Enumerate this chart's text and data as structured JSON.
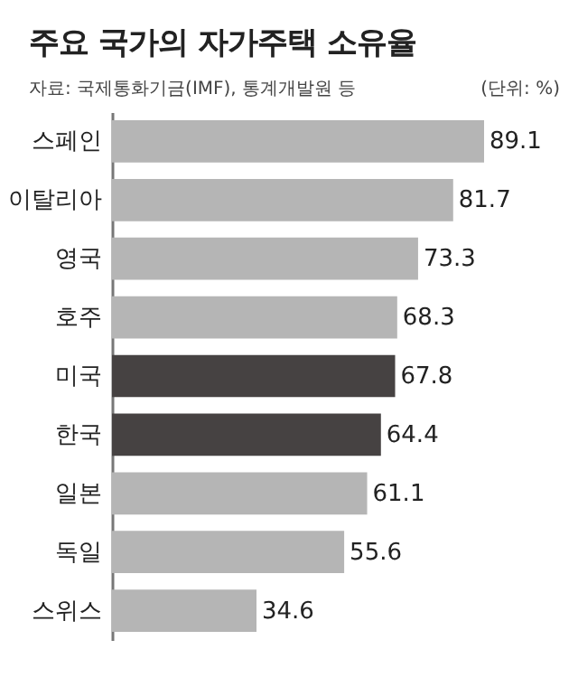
{
  "chart_data": {
    "type": "bar",
    "orientation": "horizontal",
    "title": "주요 국가의 자가주택 소유율",
    "annotations": [
      "자료: 국제통화기금(IMF), 통계개발원 등",
      "(단위: %)"
    ],
    "categories": [
      "스페인",
      "이탈리아",
      "영국",
      "호주",
      "미국",
      "한국",
      "일본",
      "독일",
      "스위스"
    ],
    "values": [
      89.1,
      81.7,
      73.3,
      68.3,
      67.8,
      64.4,
      61.1,
      55.6,
      34.6
    ],
    "colors": [
      "#b5b5b5",
      "#b5b5b5",
      "#b5b5b5",
      "#b5b5b5",
      "#464242",
      "#464242",
      "#b5b5b5",
      "#b5b5b5",
      "#b5b5b5"
    ],
    "data_labels": true
  }
}
